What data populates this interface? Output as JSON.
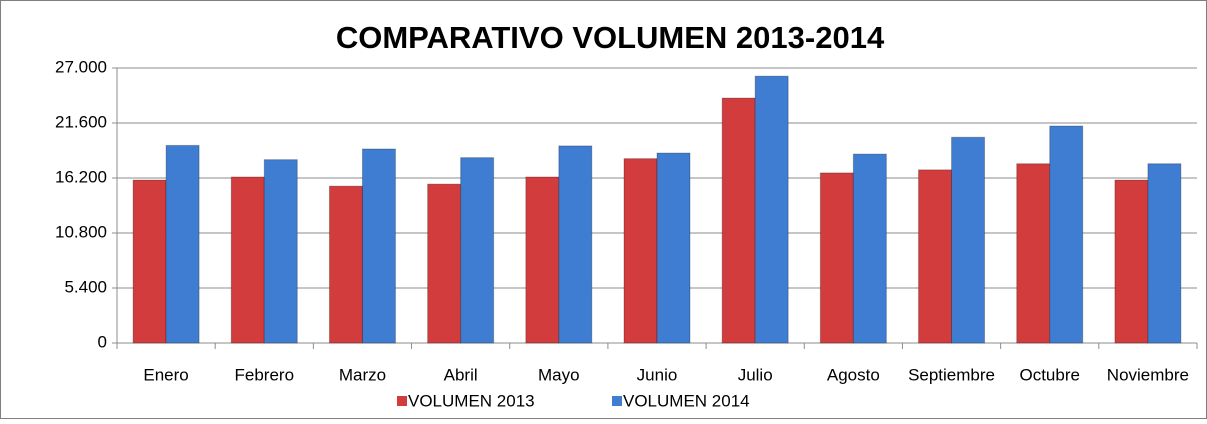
{
  "chart_data": {
    "type": "bar",
    "title": "COMPARATIVO VOLUMEN 2013-2014",
    "categories": [
      "Enero",
      "Febrero",
      "Marzo",
      "Abril",
      "Mayo",
      "Junio",
      "Julio",
      "Agosto",
      "Septiembre",
      "Octubre",
      "Noviembre"
    ],
    "series": [
      {
        "name": "VOLUMEN 2013",
        "color": "#d23c3c",
        "values": [
          16000,
          16300,
          15400,
          15600,
          16300,
          18100,
          24050,
          16700,
          17000,
          17600,
          16000
        ]
      },
      {
        "name": "VOLUMEN 2014",
        "color": "#3e7dd1",
        "values": [
          19400,
          18000,
          19050,
          18200,
          19350,
          18650,
          26200,
          18550,
          20200,
          21300,
          17600
        ]
      }
    ],
    "ylim": [
      0,
      27000
    ],
    "yticks": [
      0,
      {
        "value": 5400,
        "label": "5.400"
      },
      {
        "value": 10800,
        "label": "10.800"
      },
      {
        "value": 16200,
        "label": "16.200"
      },
      {
        "value": 21600,
        "label": "21.600"
      },
      {
        "value": 27000,
        "label": "27.000"
      }
    ],
    "grid": true,
    "legend": "bottom"
  }
}
